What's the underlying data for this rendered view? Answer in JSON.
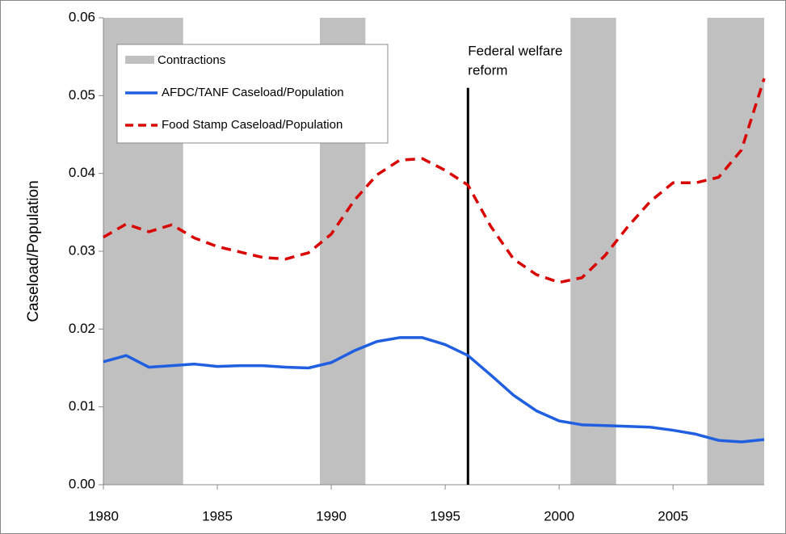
{
  "chart_data": {
    "type": "line",
    "y_label": "Caseload/Population",
    "x": [
      1980,
      1981,
      1982,
      1983,
      1984,
      1985,
      1986,
      1987,
      1988,
      1989,
      1990,
      1991,
      1992,
      1993,
      1994,
      1995,
      1996,
      1997,
      1998,
      1999,
      2000,
      2001,
      2002,
      2003,
      2004,
      2005,
      2006,
      2007,
      2008,
      2009
    ],
    "series": [
      {
        "name": "AFDC/TANF Caseload/Population",
        "color": "#1f5fe0",
        "dashed": false,
        "values": [
          0.0158,
          0.0166,
          0.0151,
          0.0153,
          0.0155,
          0.0152,
          0.0153,
          0.0153,
          0.0151,
          0.015,
          0.0157,
          0.0172,
          0.0184,
          0.0189,
          0.0189,
          0.018,
          0.0166,
          0.0141,
          0.0115,
          0.0095,
          0.0082,
          0.0077,
          0.0076,
          0.0075,
          0.0074,
          0.007,
          0.0065,
          0.0057,
          0.0055,
          0.0058
        ]
      },
      {
        "name": "Food Stamp Caseload/Population",
        "color": "#d90000",
        "dashed": true,
        "values": [
          0.0318,
          0.0335,
          0.0325,
          0.0334,
          0.0317,
          0.0306,
          0.0299,
          0.0292,
          0.029,
          0.0298,
          0.0322,
          0.0365,
          0.0398,
          0.0417,
          0.0419,
          0.0404,
          0.0385,
          0.0332,
          0.029,
          0.027,
          0.026,
          0.0266,
          0.0294,
          0.0331,
          0.0364,
          0.0388,
          0.0388,
          0.0395,
          0.043,
          0.0522
        ]
      }
    ],
    "bands": {
      "name": "Contractions",
      "color": "#c0c0c0",
      "ranges": [
        [
          1980,
          1983.5
        ],
        [
          1989.5,
          1991.5
        ],
        [
          2000.5,
          2002.5
        ],
        [
          2006.5,
          2009
        ]
      ]
    },
    "annotation": {
      "text": [
        "Federal welfare",
        "reform"
      ],
      "x": 1996,
      "y_top": 0.051
    },
    "xlim": [
      1980,
      2009
    ],
    "xticks": [
      1980,
      1985,
      1990,
      1995,
      2000,
      2005
    ],
    "ylim": [
      0,
      0.06
    ],
    "yticks": [
      {
        "value": 0,
        "label": "0.00"
      },
      0.01,
      0.02,
      0.03,
      0.04,
      0.05,
      0.06
    ],
    "legend": "upper left"
  }
}
